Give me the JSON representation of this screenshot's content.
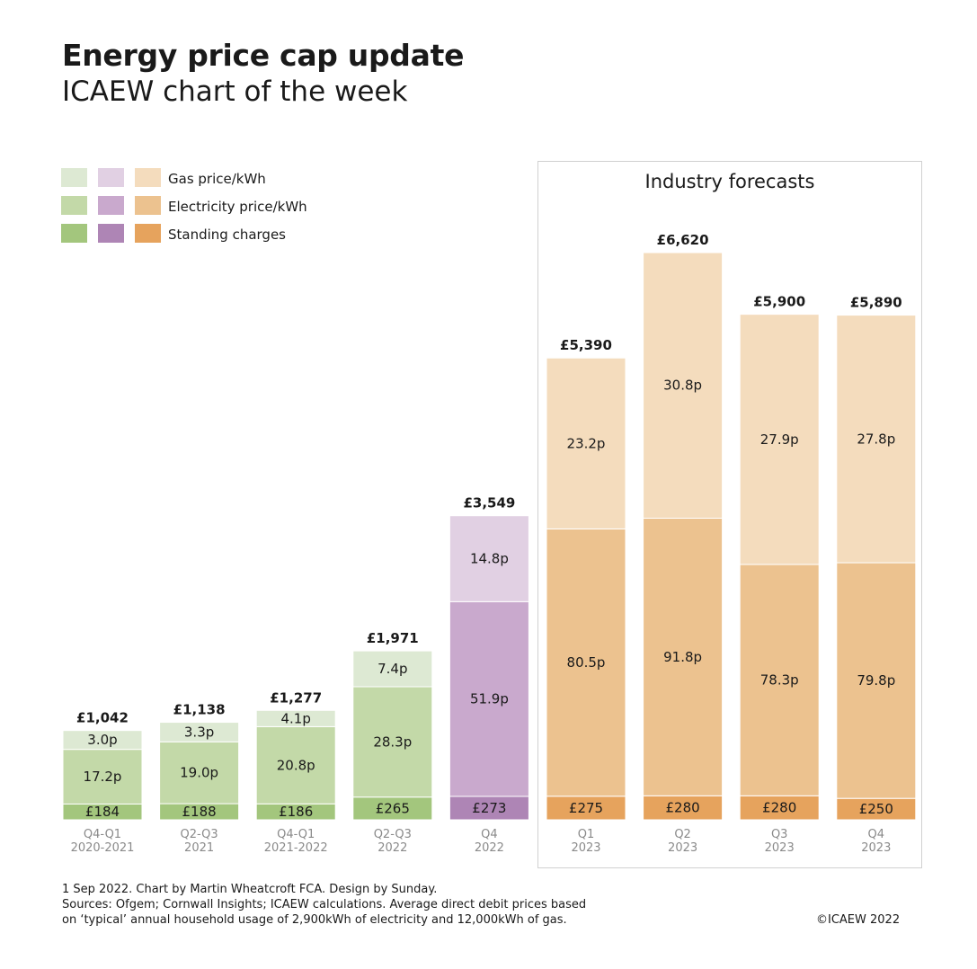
{
  "title": "Energy price cap update",
  "subtitle": "ICAEW chart of the week",
  "legend": [
    {
      "label": "Gas price/kWh",
      "colors": [
        "#dde9d3",
        "#e1d0e3",
        "#f4dcbd"
      ]
    },
    {
      "label": "Electricity price/kWh",
      "colors": [
        "#c3d9a8",
        "#c9a9cd",
        "#ecc28f"
      ]
    },
    {
      "label": "Standing charges",
      "colors": [
        "#a3c67d",
        "#ae85b5",
        "#e6a35d"
      ]
    }
  ],
  "forecast_label": "Industry forecasts",
  "footer": {
    "line1": "1 Sep 2022.   Chart by Martin Wheatcroft FCA. Design by Sunday.",
    "line2": "Sources: Ofgem; Cornwall Insights; ICAEW calculations. Average direct debit prices based",
    "line3": "on ‘typical’ annual household usage of 2,900kWh of electricity and 12,000kWh of gas.",
    "copyright": "©ICAEW 2022"
  },
  "chart_data": {
    "type": "bar",
    "stacked": true,
    "ylim": [
      0,
      7000
    ],
    "categories": [
      {
        "line1": "Q4-Q1",
        "line2": "2020-2021"
      },
      {
        "line1": "Q2-Q3",
        "line2": "2021"
      },
      {
        "line1": "Q4-Q1",
        "line2": "2021-2022"
      },
      {
        "line1": "Q2-Q3",
        "line2": "2022"
      },
      {
        "line1": "Q4",
        "line2": "2022"
      },
      {
        "line1": "Q1",
        "line2": "2023"
      },
      {
        "line1": "Q2",
        "line2": "2023"
      },
      {
        "line1": "Q3",
        "line2": "2023"
      },
      {
        "line1": "Q4",
        "line2": "2023"
      }
    ],
    "totals": [
      1042,
      1138,
      1277,
      1971,
      3549,
      5390,
      6620,
      5900,
      5890
    ],
    "total_labels": [
      "£1,042",
      "£1,138",
      "£1,277",
      "£1,971",
      "£3,549",
      "£5,390",
      "£6,620",
      "£5,900",
      "£5,890"
    ],
    "palette": [
      "green",
      "green",
      "green",
      "green",
      "purple",
      "orange",
      "orange",
      "orange",
      "orange"
    ],
    "series": [
      {
        "name": "Standing charges",
        "values": [
          184,
          188,
          186,
          265,
          273,
          275,
          280,
          280,
          250
        ],
        "labels": [
          "£184",
          "£188",
          "£186",
          "£265",
          "£273",
          "£275",
          "£280",
          "£280",
          "£250"
        ]
      },
      {
        "name": "Electricity price/kWh",
        "values": [
          638,
          722,
          901,
          1288,
          2273,
          3120,
          3240,
          2700,
          2750
        ],
        "labels": [
          "17.2p",
          "19.0p",
          "20.8p",
          "28.3p",
          "51.9p",
          "80.5p",
          "91.8p",
          "78.3p",
          "79.8p"
        ]
      },
      {
        "name": "Gas price/kWh",
        "values": [
          220,
          228,
          190,
          418,
          1003,
          1995,
          3100,
          2920,
          2890
        ],
        "labels": [
          "3.0p",
          "3.3p",
          "4.1p",
          "7.4p",
          "14.8p",
          "23.2p",
          "30.8p",
          "27.9p",
          "27.8p"
        ]
      }
    ],
    "colors": {
      "green": [
        "#a3c67d",
        "#c3d9a8",
        "#dde9d3"
      ],
      "purple": [
        "#ae85b5",
        "#c9a9cd",
        "#e1d0e3"
      ],
      "orange": [
        "#e6a35d",
        "#ecc28f",
        "#f4dcbd"
      ]
    },
    "axis_label_color": "#8a8a8a"
  }
}
